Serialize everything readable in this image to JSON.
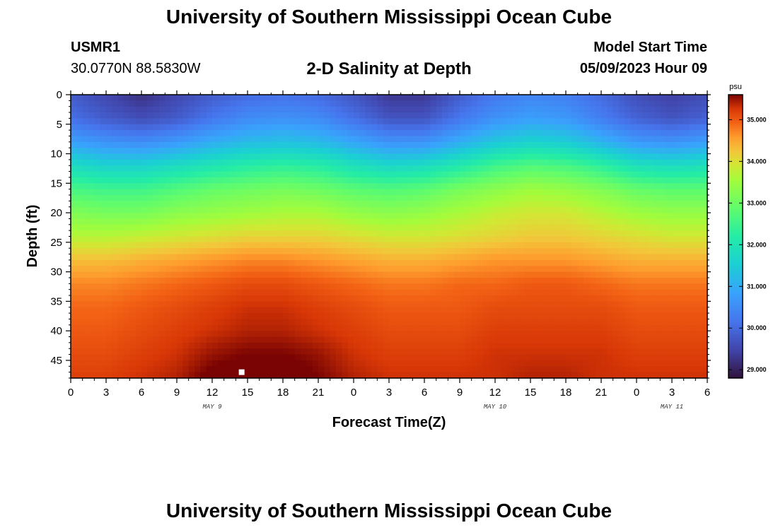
{
  "header": {
    "title": "University of Southern Mississippi Ocean Cube",
    "station_id": "USMR1",
    "coordinates": "30.0770N  88.5830W",
    "plot_title": "2-D Salinity at Depth",
    "model_start_label": "Model Start Time",
    "model_start_time": "05/09/2023 Hour 09"
  },
  "footer": {
    "title": "University of Southern Mississippi Ocean Cube"
  },
  "chart_data": {
    "type": "heatmap",
    "title": "2-D Salinity at Depth",
    "xlabel": "Forecast Time(Z)",
    "ylabel": "Depth (ft)",
    "x_ticks": [
      "0",
      "3",
      "6",
      "9",
      "12",
      "15",
      "18",
      "21",
      "0",
      "3",
      "6",
      "9",
      "12",
      "15",
      "18",
      "21",
      "0",
      "3",
      "6"
    ],
    "x_range_hours": [
      0,
      54
    ],
    "day_labels": [
      {
        "label": "MAY 9",
        "hour": 12
      },
      {
        "label": "MAY 10",
        "hour": 36
      },
      {
        "label": "MAY 11",
        "hour": 51
      }
    ],
    "y_ticks": [
      0,
      5,
      10,
      15,
      20,
      25,
      30,
      35,
      40,
      45
    ],
    "ylim": [
      0,
      48
    ],
    "y_inverted": true,
    "colorbar": {
      "unit": "psu",
      "range": [
        28.8,
        35.6
      ],
      "tick_values": [
        29.0,
        30.0,
        31.0,
        32.0,
        33.0,
        34.0,
        35.0
      ],
      "tick_labels": [
        "29.000",
        "30.000",
        "31.000",
        "32.000",
        "33.000",
        "34.000",
        "35.000"
      ],
      "colormap": "turbo"
    },
    "grid": false,
    "marker": {
      "hour": 14.5,
      "depth": 47,
      "color": "#ffffff"
    },
    "depths": [
      0,
      4,
      8,
      12,
      16,
      20,
      24,
      28,
      32,
      36,
      40,
      44,
      48
    ],
    "times": [
      0,
      3,
      6,
      9,
      12,
      15,
      18,
      21,
      24,
      27,
      30,
      33,
      36,
      39,
      42,
      45,
      48,
      51,
      54
    ],
    "salinity": [
      [
        29.8,
        29.5,
        29.2,
        29.5,
        29.8,
        30.0,
        30.1,
        30.0,
        29.7,
        29.3,
        29.3,
        29.8,
        30.2,
        30.4,
        30.3,
        30.0,
        29.6,
        29.4,
        29.6
      ],
      [
        30.1,
        29.8,
        29.6,
        29.8,
        30.2,
        30.5,
        30.6,
        30.5,
        30.1,
        29.7,
        29.7,
        30.2,
        30.6,
        30.8,
        30.7,
        30.3,
        29.9,
        29.7,
        29.9
      ],
      [
        30.8,
        30.6,
        30.5,
        30.7,
        31.0,
        31.2,
        31.3,
        31.2,
        30.9,
        30.6,
        30.6,
        31.0,
        31.4,
        31.6,
        31.5,
        31.1,
        30.7,
        30.6,
        30.8
      ],
      [
        31.8,
        31.6,
        31.6,
        31.8,
        32.0,
        32.2,
        32.3,
        32.2,
        31.9,
        31.7,
        31.8,
        32.1,
        32.5,
        32.7,
        32.6,
        32.3,
        31.9,
        31.8,
        31.9
      ],
      [
        32.6,
        32.5,
        32.5,
        32.7,
        32.9,
        33.0,
        33.1,
        33.0,
        32.8,
        32.7,
        32.8,
        33.1,
        33.3,
        33.5,
        33.4,
        33.2,
        32.9,
        32.8,
        32.8
      ],
      [
        33.2,
        33.1,
        33.1,
        33.3,
        33.4,
        33.5,
        33.6,
        33.6,
        33.4,
        33.3,
        33.4,
        33.6,
        33.8,
        33.9,
        33.9,
        33.7,
        33.5,
        33.4,
        33.4
      ],
      [
        33.7,
        33.7,
        33.8,
        33.9,
        34.0,
        34.1,
        34.1,
        34.1,
        34.0,
        33.9,
        33.9,
        34.0,
        34.1,
        34.2,
        34.2,
        34.1,
        34.0,
        33.9,
        33.9
      ],
      [
        34.3,
        34.3,
        34.4,
        34.5,
        34.6,
        34.7,
        34.7,
        34.6,
        34.5,
        34.4,
        34.4,
        34.5,
        34.6,
        34.6,
        34.6,
        34.5,
        34.4,
        34.4,
        34.4
      ],
      [
        34.7,
        34.7,
        34.8,
        34.9,
        35.0,
        35.1,
        35.1,
        35.0,
        34.9,
        34.8,
        34.8,
        34.9,
        34.9,
        35.0,
        35.0,
        34.9,
        34.8,
        34.8,
        34.8
      ],
      [
        34.9,
        34.9,
        35.0,
        35.1,
        35.2,
        35.3,
        35.3,
        35.2,
        35.1,
        35.0,
        35.0,
        35.0,
        35.1,
        35.1,
        35.1,
        35.1,
        35.0,
        35.0,
        35.0
      ],
      [
        35.0,
        35.0,
        35.1,
        35.2,
        35.3,
        35.4,
        35.4,
        35.3,
        35.2,
        35.1,
        35.1,
        35.1,
        35.2,
        35.2,
        35.2,
        35.2,
        35.1,
        35.1,
        35.1
      ],
      [
        35.1,
        35.1,
        35.2,
        35.3,
        35.5,
        35.6,
        35.6,
        35.5,
        35.3,
        35.2,
        35.2,
        35.2,
        35.3,
        35.3,
        35.3,
        35.3,
        35.2,
        35.2,
        35.2
      ],
      [
        35.2,
        35.2,
        35.3,
        35.4,
        35.7,
        35.8,
        35.8,
        35.6,
        35.4,
        35.3,
        35.3,
        35.3,
        35.3,
        35.4,
        35.4,
        35.3,
        35.3,
        35.3,
        35.3
      ]
    ]
  }
}
